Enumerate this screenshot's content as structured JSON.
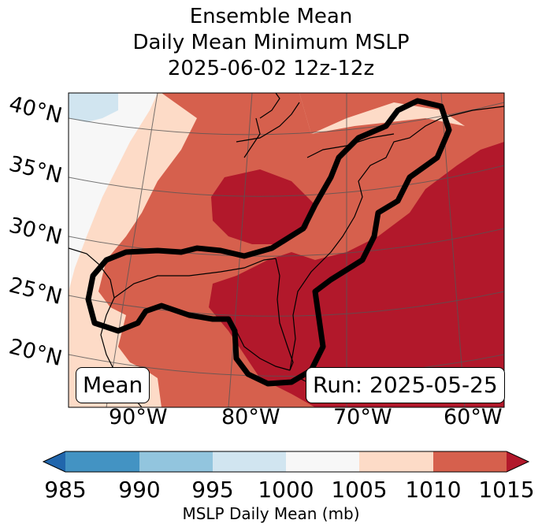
{
  "title": {
    "line1": "Ensemble Mean",
    "line2": "Daily Mean Minimum MSLP",
    "line3": "2025-06-02 12z-12z"
  },
  "map": {
    "lat_labels": [
      "40°N",
      "35°N",
      "30°N",
      "25°N",
      "20°N"
    ],
    "lon_labels": [
      "90°W",
      "80°W",
      "70°W",
      "60°W"
    ],
    "mean_label": "Mean",
    "run_label": "Run: 2025-05-25",
    "fill_colors": {
      "c1000_1005": "#f7f7f7",
      "c995_1000": "#d1e5f0",
      "c1005_1010": "#fddbc7",
      "c1010_1015": "#d6604d",
      "c1015_plus": "#b2182b",
      "outline": "#000000",
      "coast": "#000000",
      "grid": "#555555"
    }
  },
  "colorbar": {
    "levels": [
      985,
      990,
      995,
      1000,
      1005,
      1010,
      1015
    ],
    "tick_labels": [
      "985",
      "990",
      "995",
      "1000",
      "1005",
      "1010",
      "1015"
    ],
    "colors": [
      "#4393c3",
      "#92c5de",
      "#d1e5f0",
      "#f7f7f7",
      "#fddbc7",
      "#d6604d"
    ],
    "under_color": "#2166ac",
    "over_color": "#b2182b",
    "label": "MSLP Daily Mean (mb)"
  }
}
